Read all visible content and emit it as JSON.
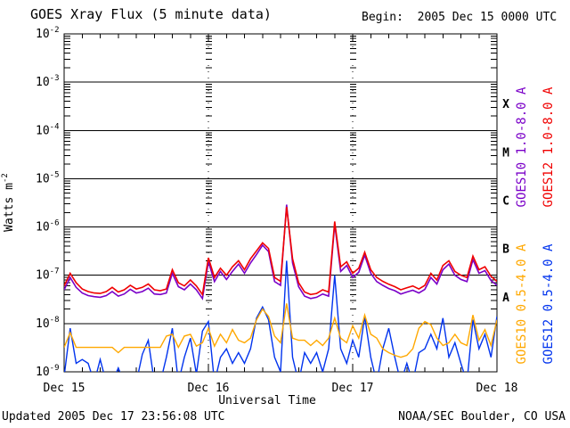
{
  "title": "GOES Xray Flux (5 minute data)",
  "begin_label": "Begin:  2005 Dec 15 0000 UTC",
  "footer": {
    "updated": "Updated 2005 Dec 17 23:56:08 UTC",
    "source": "NOAA/SEC Boulder, CO USA"
  },
  "colors": {
    "axis": "#000000",
    "background": "#ffffff",
    "goes10_long": "#7a00c8",
    "goes12_long": "#f00000",
    "goes10_short": "#ffa800",
    "goes12_short": "#0033ee"
  },
  "chart_data": {
    "type": "line",
    "title": "GOES Xray Flux (5 minute data)",
    "xlabel": "Universal Time",
    "ylabel": "Watts m^-2",
    "y_scale": "log",
    "ylim": [
      1e-09,
      0.01
    ],
    "y_tick_exponents": [
      -2,
      -3,
      -4,
      -5,
      -6,
      -7,
      -8,
      -9
    ],
    "x_range_hours": [
      0,
      72
    ],
    "x_tick_hours": [
      0,
      24,
      48,
      72
    ],
    "x_tick_labels": [
      "Dec 15",
      "Dec 16",
      "Dec 17",
      "Dec 18"
    ],
    "x_minor_tick_hours": 3,
    "day_line_hours": [
      24,
      48
    ],
    "grid": "decade-horizontal-solid, day-vertical-dotted",
    "legend_position": "right-rotated",
    "flux_classes": [
      {
        "label": "X",
        "min": 0.0001,
        "max": 0.001
      },
      {
        "label": "M",
        "min": 1e-05,
        "max": 0.0001
      },
      {
        "label": "C",
        "min": 1e-06,
        "max": 1e-05
      },
      {
        "label": "B",
        "min": 1e-07,
        "max": 1e-06
      },
      {
        "label": "A",
        "min": 1e-08,
        "max": 1e-07
      }
    ],
    "sample_interval_hours": 1,
    "series": [
      {
        "id": "goes10-long",
        "name": "GOES10 1.0-8.0 A",
        "color": "#7a00c8",
        "values": [
          5e-08,
          9e-08,
          5.6e-08,
          4.3e-08,
          3.8e-08,
          3.6e-08,
          3.5e-08,
          3.8e-08,
          4.6e-08,
          3.7e-08,
          4.1e-08,
          5.1e-08,
          4.3e-08,
          4.6e-08,
          5.4e-08,
          4.1e-08,
          4e-08,
          4.3e-08,
          1.1e-07,
          5.8e-08,
          5e-08,
          6.6e-08,
          5e-08,
          3.3e-08,
          1.9e-07,
          7.4e-08,
          1.2e-07,
          8.2e-08,
          1.2e-07,
          1.7e-07,
          1.1e-07,
          1.8e-07,
          2.7e-07,
          4.2e-07,
          3.1e-07,
          7.4e-08,
          6.2e-08,
          2.9e-06,
          1.8e-07,
          5.8e-08,
          3.7e-08,
          3.3e-08,
          3.5e-08,
          4.1e-08,
          3.7e-08,
          1.15e-06,
          1.2e-07,
          1.6e-07,
          9e-08,
          1.15e-07,
          2.6e-07,
          1.1e-07,
          7.4e-08,
          6.2e-08,
          5.3e-08,
          4.8e-08,
          4.1e-08,
          4.5e-08,
          4.9e-08,
          4.3e-08,
          5.1e-08,
          9e-08,
          6.6e-08,
          1.3e-07,
          1.7e-07,
          1e-07,
          8.2e-08,
          7.4e-08,
          2.1e-07,
          1.1e-07,
          1.25e-07,
          7.8e-08,
          6.2e-08
        ]
      },
      {
        "id": "goes12-long",
        "name": "GOES12 1.0-8.0 A",
        "color": "#f00000",
        "values": [
          6e-08,
          1.1e-07,
          7e-08,
          5.2e-08,
          4.6e-08,
          4.3e-08,
          4.2e-08,
          4.6e-08,
          5.6e-08,
          4.5e-08,
          5e-08,
          6.2e-08,
          5.2e-08,
          5.6e-08,
          6.6e-08,
          5e-08,
          4.8e-08,
          5.2e-08,
          1.3e-07,
          7e-08,
          6e-08,
          8e-08,
          6e-08,
          4e-08,
          2.3e-07,
          9e-08,
          1.4e-07,
          1e-07,
          1.5e-07,
          2e-07,
          1.3e-07,
          2.2e-07,
          3.2e-07,
          4.7e-07,
          3.6e-07,
          9e-08,
          7.5e-08,
          2.6e-06,
          2.2e-07,
          7e-08,
          4.5e-08,
          4e-08,
          4.2e-08,
          5e-08,
          4.5e-08,
          1.3e-06,
          1.5e-07,
          1.9e-07,
          1.1e-07,
          1.4e-07,
          3e-07,
          1.3e-07,
          9e-08,
          7.5e-08,
          6.5e-08,
          5.8e-08,
          5e-08,
          5.5e-08,
          6e-08,
          5.2e-08,
          6.2e-08,
          1.1e-07,
          8e-08,
          1.6e-07,
          2e-07,
          1.2e-07,
          1e-07,
          9e-08,
          2.5e-07,
          1.3e-07,
          1.5e-07,
          9.5e-08,
          7.5e-08
        ]
      },
      {
        "id": "goes10-short",
        "name": "GOES10 0.5-4.0 A",
        "color": "#ffa800",
        "values": [
          3.2e-09,
          6.5e-09,
          3.2e-09,
          3.2e-09,
          3.2e-09,
          3.2e-09,
          3.2e-09,
          3.2e-09,
          3.2e-09,
          2.5e-09,
          3.2e-09,
          3.2e-09,
          3.2e-09,
          3.2e-09,
          3.2e-09,
          3.2e-09,
          3.2e-09,
          5.5e-09,
          6e-09,
          3.2e-09,
          5.5e-09,
          6e-09,
          3.4e-09,
          4e-09,
          8e-09,
          3.4e-09,
          6e-09,
          4e-09,
          7.5e-09,
          4.5e-09,
          4e-09,
          5e-09,
          1.2e-08,
          2e-08,
          1.4e-08,
          5.5e-09,
          4e-09,
          2.6e-08,
          5e-09,
          4.5e-09,
          4.5e-09,
          3.5e-09,
          4.5e-09,
          3.5e-09,
          5e-09,
          1.3e-08,
          5e-09,
          4e-09,
          9e-09,
          5e-09,
          1.5e-08,
          6e-09,
          5e-09,
          3e-09,
          2.5e-09,
          2.2e-09,
          2e-09,
          2.2e-09,
          3e-09,
          8e-09,
          1.1e-08,
          9.5e-09,
          5e-09,
          3.5e-09,
          4e-09,
          6e-09,
          4e-09,
          3.5e-09,
          1.5e-08,
          4.5e-09,
          7.5e-09,
          3.5e-09,
          1.2e-08
        ]
      },
      {
        "id": "goes12-short",
        "name": "GOES12 0.5-4.0 A",
        "color": "#0033ee",
        "values": [
          8e-10,
          8e-09,
          1.5e-09,
          1.8e-09,
          1.5e-09,
          6e-10,
          1.8e-09,
          6e-10,
          6e-10,
          1.2e-09,
          6e-10,
          6e-10,
          6e-10,
          2.3e-09,
          4.5e-09,
          6e-10,
          6e-10,
          2e-09,
          8e-09,
          6e-10,
          2e-09,
          5e-09,
          9e-10,
          7e-09,
          1.1e-08,
          6e-10,
          2e-09,
          3e-09,
          1.5e-09,
          2.5e-09,
          1.5e-09,
          3e-09,
          1.3e-08,
          2.2e-08,
          1.2e-08,
          2e-09,
          1e-09,
          2e-07,
          2e-09,
          6e-10,
          2.5e-09,
          1.5e-09,
          2.5e-09,
          1e-09,
          3e-09,
          1e-07,
          3e-09,
          1.5e-09,
          4.5e-09,
          2e-09,
          1.4e-08,
          2e-09,
          6e-10,
          3e-09,
          8e-09,
          2e-09,
          6e-10,
          1.5e-09,
          6e-10,
          2.5e-09,
          3e-09,
          6e-09,
          3e-09,
          1.3e-08,
          2e-09,
          4e-09,
          1.5e-09,
          6e-10,
          1.2e-08,
          3e-09,
          6e-09,
          2e-09,
          1.4e-08
        ]
      }
    ]
  }
}
